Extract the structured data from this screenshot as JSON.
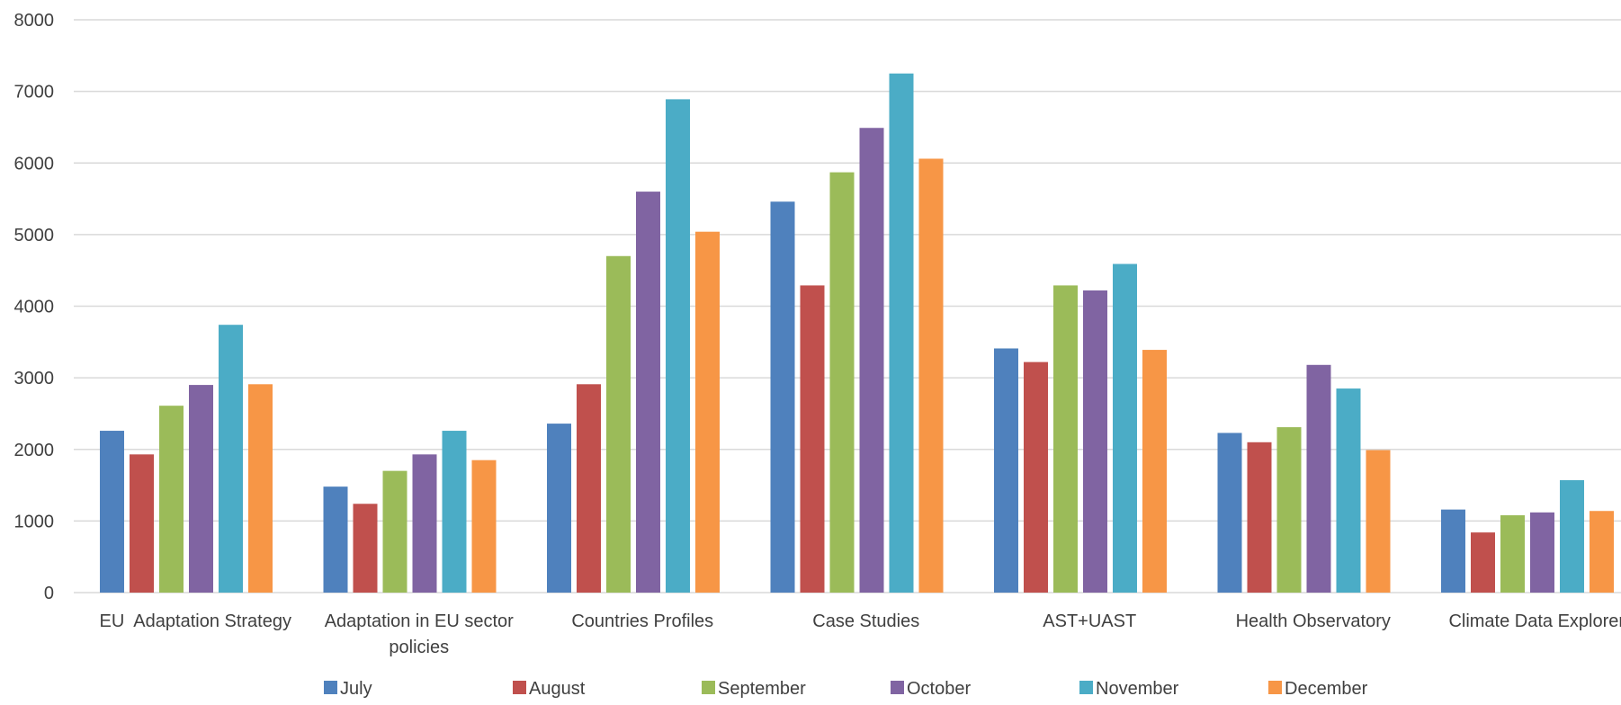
{
  "chart_data": {
    "type": "bar",
    "categories": [
      "EU  Adaptation Strategy",
      "Adaptation in EU sector policies",
      "Countries Profiles",
      "Case Studies",
      "AST+UAST",
      "Health Observatory",
      "Climate Data Explorer"
    ],
    "series": [
      {
        "name": "July",
        "color": "#4F81BD",
        "values": [
          2260,
          1480,
          2360,
          5460,
          3410,
          2230,
          1160
        ]
      },
      {
        "name": "August",
        "color": "#C0504D",
        "values": [
          1930,
          1240,
          2910,
          4290,
          3220,
          2100,
          840
        ]
      },
      {
        "name": "September",
        "color": "#9BBB59",
        "values": [
          2610,
          1700,
          4700,
          5870,
          4290,
          2310,
          1080
        ]
      },
      {
        "name": "October",
        "color": "#8064A2",
        "values": [
          2900,
          1930,
          5600,
          6490,
          4220,
          3180,
          1120
        ]
      },
      {
        "name": "November",
        "color": "#4BACC6",
        "values": [
          3740,
          2260,
          6890,
          7250,
          4590,
          2850,
          1570
        ]
      },
      {
        "name": "December",
        "color": "#F79646",
        "values": [
          2910,
          1850,
          5040,
          6060,
          3390,
          1990,
          1140
        ]
      }
    ],
    "ylim": [
      0,
      8000
    ],
    "yticks": [
      "0",
      "1000",
      "2000",
      "3000",
      "4000",
      "5000",
      "6000",
      "7000",
      "8000"
    ],
    "grid": true,
    "legend_position": "bottom",
    "title": "",
    "xlabel": "",
    "ylabel": ""
  }
}
